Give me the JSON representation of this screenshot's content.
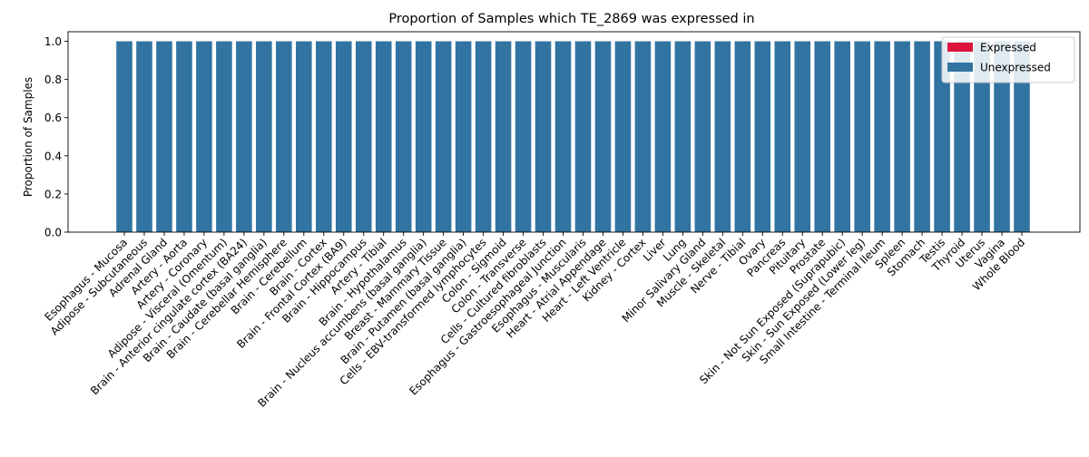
{
  "colors": {
    "expressed": "#DC143C",
    "unexpressed": "#3274A1"
  },
  "chart_data": {
    "type": "bar",
    "stacked": true,
    "title": "Proportion of Samples which TE_2869 was expressed in",
    "xlabel": "",
    "ylabel": "Proportion of Samples",
    "ylim": [
      0,
      1.05
    ],
    "yticks": [
      "0.0",
      "0.2",
      "0.4",
      "0.6",
      "0.8",
      "1.0"
    ],
    "legend_position": "top-right",
    "categories": [
      "Esophagus - Mucosa",
      "Adipose - Subcutaneous",
      "Adrenal Gland",
      "Artery - Aorta",
      "Artery - Coronary",
      "Adipose - Visceral (Omentum)",
      "Brain - Anterior cingulate cortex (BA24)",
      "Brain - Caudate (basal ganglia)",
      "Brain - Cerebellar Hemisphere",
      "Brain - Cerebellum",
      "Brain - Cortex",
      "Brain - Frontal Cortex (BA9)",
      "Brain - Hippocampus",
      "Artery - Tibial",
      "Brain - Hypothalamus",
      "Brain - Nucleus accumbens (basal ganglia)",
      "Breast - Mammary Tissue",
      "Brain - Putamen (basal ganglia)",
      "Cells - EBV-transformed lymphocytes",
      "Colon - Sigmoid",
      "Colon - Transverse",
      "Cells - Cultured fibroblasts",
      "Esophagus - Gastroesophageal Junction",
      "Esophagus - Muscularis",
      "Heart - Atrial Appendage",
      "Heart - Left Ventricle",
      "Kidney - Cortex",
      "Liver",
      "Lung",
      "Minor Salivary Gland",
      "Muscle - Skeletal",
      "Nerve - Tibial",
      "Ovary",
      "Pancreas",
      "Pituitary",
      "Prostate",
      "Skin - Not Sun Exposed (Suprapubic)",
      "Skin - Sun Exposed (Lower leg)",
      "Small Intestine - Terminal Ileum",
      "Spleen",
      "Stomach",
      "Testis",
      "Thyroid",
      "Uterus",
      "Vagina",
      "Whole Blood"
    ],
    "series": [
      {
        "name": "Expressed",
        "color": "#DC143C",
        "values": [
          0,
          0,
          0,
          0,
          0,
          0,
          0,
          0,
          0,
          0,
          0,
          0,
          0,
          0,
          0,
          0,
          0,
          0,
          0,
          0,
          0,
          0,
          0,
          0,
          0,
          0,
          0,
          0,
          0,
          0,
          0,
          0,
          0,
          0,
          0,
          0,
          0,
          0,
          0,
          0,
          0,
          0,
          0,
          0,
          0,
          0
        ]
      },
      {
        "name": "Unexpressed",
        "color": "#3274A1",
        "values": [
          1,
          1,
          1,
          1,
          1,
          1,
          1,
          1,
          1,
          1,
          1,
          1,
          1,
          1,
          1,
          1,
          1,
          1,
          1,
          1,
          1,
          1,
          1,
          1,
          1,
          1,
          1,
          1,
          1,
          1,
          1,
          1,
          1,
          1,
          1,
          1,
          1,
          1,
          1,
          1,
          1,
          1,
          1,
          1,
          1,
          1
        ]
      }
    ]
  }
}
